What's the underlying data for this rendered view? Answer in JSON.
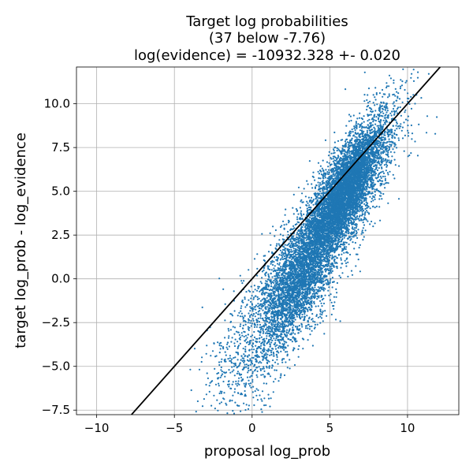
{
  "chart_data": {
    "type": "scatter",
    "title_lines": [
      "Target log probabilities",
      "(37 below -7.76)",
      "log(evidence) = -10932.328 +- 0.020"
    ],
    "xlabel": "proposal log_prob",
    "ylabel": "target log_prob - log_evidence",
    "xlim": [
      -11.3,
      13.3
    ],
    "ylim": [
      -7.76,
      12.1
    ],
    "xticks": [
      -10,
      -5,
      0,
      5,
      10
    ],
    "xtick_labels": [
      "−10",
      "−5",
      "0",
      "5",
      "10"
    ],
    "yticks": [
      -7.5,
      -5.0,
      -2.5,
      0.0,
      2.5,
      5.0,
      7.5,
      10.0
    ],
    "ytick_labels": [
      "−7.5",
      "−5.0",
      "−2.5",
      "0.0",
      "2.5",
      "5.0",
      "7.5",
      "10.0"
    ],
    "grid": true,
    "point_color": "#1f77b4",
    "line_color": "#000000",
    "reference_line": {
      "x": [
        -7.76,
        12.1
      ],
      "y": [
        -7.76,
        12.1
      ]
    },
    "scatter_clusters": [
      {
        "cx": 6.0,
        "cy": 5.0,
        "sx": 1.3,
        "sy": 2.0,
        "rho": 0.8,
        "n": 5200
      },
      {
        "cx": 2.8,
        "cy": -0.5,
        "sx": 1.3,
        "sy": 1.8,
        "rho": 0.6,
        "n": 2600
      },
      {
        "cx": 5.0,
        "cy": 3.5,
        "sx": 2.2,
        "sy": 3.2,
        "rho": 0.85,
        "n": 2500
      },
      {
        "cx": -0.3,
        "cy": -4.5,
        "sx": 1.3,
        "sy": 2.0,
        "rho": 0.3,
        "n": 550
      }
    ],
    "scatter_seed": 7
  }
}
